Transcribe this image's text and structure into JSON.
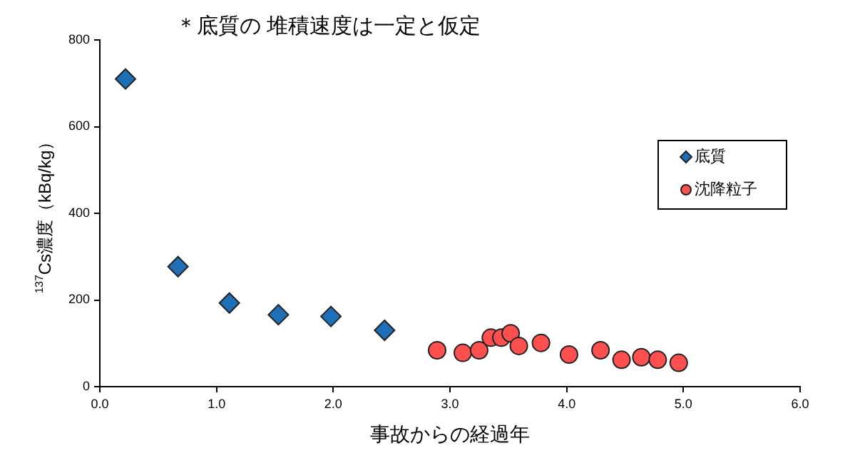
{
  "chart_data": {
    "type": "scatter",
    "title": "＊底質の 堆積速度は一定と仮定",
    "xlabel": "事故からの経過年",
    "ylabel": "$^{137}$Cs濃度（kBq/kg）",
    "xlim": [
      0,
      6
    ],
    "xticks": [
      {
        "value": 0,
        "label": "0.0"
      },
      {
        "value": 1,
        "label": "1.0"
      },
      {
        "value": 2,
        "label": "2.0"
      },
      {
        "value": 3,
        "label": "3.0"
      },
      {
        "value": 4,
        "label": "4.0"
      },
      {
        "value": 5,
        "label": "5.0"
      },
      {
        "value": 6,
        "label": "6.0"
      }
    ],
    "ylim": [
      0,
      800
    ],
    "yticks": [
      0,
      200,
      400,
      600,
      800
    ],
    "grid": false,
    "legend": "right",
    "series": [
      {
        "name": "底質",
        "color": "#1f6fb8",
        "marker": "diamond",
        "x": [
          0.22,
          0.67,
          1.11,
          1.53,
          1.98,
          2.44
        ],
        "values": [
          710,
          277,
          193,
          166,
          162,
          130
        ]
      },
      {
        "name": "沈降粒子",
        "color": "#ff5050",
        "marker": "circle",
        "x": [
          2.89,
          3.11,
          3.25,
          3.35,
          3.44,
          3.52,
          3.59,
          3.78,
          4.02,
          4.29,
          4.47,
          4.64,
          4.78,
          4.96
        ],
        "values": [
          84,
          78,
          84,
          113,
          113,
          123,
          94,
          101,
          74,
          84,
          62,
          68,
          62,
          55
        ]
      }
    ]
  }
}
